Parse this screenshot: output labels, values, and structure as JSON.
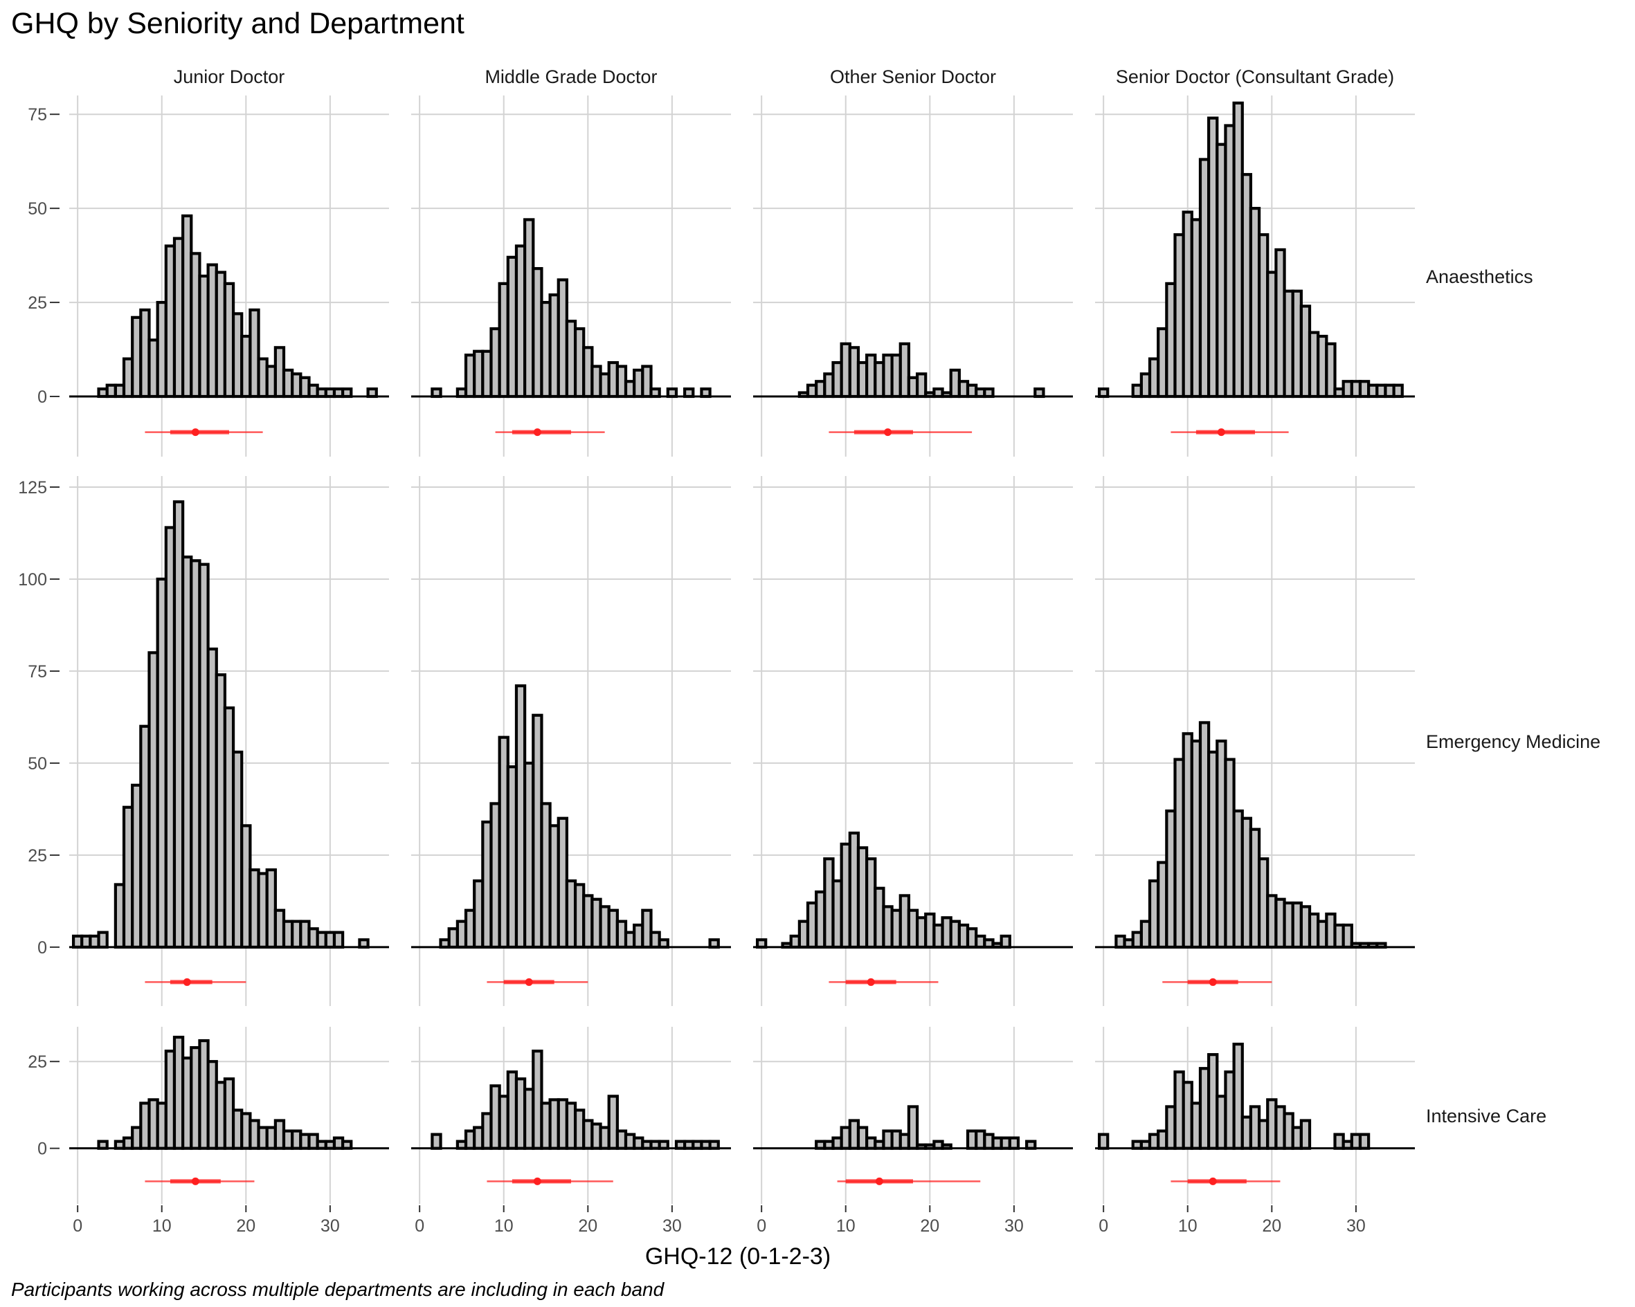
{
  "chart_data": {
    "type": "bar",
    "title": "GHQ by Seniority and Department",
    "xlabel": "GHQ-12 (0-1-2-3)",
    "caption": "Participants working across multiple departments are including in each band",
    "columns": [
      "Junior Doctor",
      "Middle Grade Doctor",
      "Other Senior Doctor",
      "Senior Doctor (Consultant Grade)"
    ],
    "rows": [
      "Anaesthetics",
      "Emergency Medicine",
      "Intensive Care"
    ],
    "x_ticks": [
      0,
      10,
      20,
      30
    ],
    "xlim": [
      -1,
      37
    ],
    "bin_width": 1,
    "row_ylim": [
      [
        -16,
        80
      ],
      [
        -16,
        128
      ],
      [
        -16,
        35
      ]
    ],
    "row_yticks": [
      [
        0,
        25,
        50,
        75
      ],
      [
        0,
        25,
        50,
        75,
        100,
        125
      ],
      [
        0,
        25
      ]
    ],
    "x_tick_labels": [
      "0",
      "10",
      "20",
      "30"
    ],
    "row_ytick_labels": [
      [
        "0",
        "25",
        "50",
        "75"
      ],
      [
        "0",
        "25",
        "50",
        "75",
        "100",
        "125"
      ],
      [
        "0",
        "25"
      ]
    ],
    "grid": true,
    "bar_fill": "#bfbfbf",
    "bar_outline": "#000000",
    "summary_color": "#ff2020",
    "panels": [
      [
        {
          "counts": [
            0,
            0,
            0,
            2,
            3,
            3,
            10,
            21,
            23,
            15,
            25,
            40,
            42,
            48,
            38,
            32,
            35,
            33,
            30,
            22,
            16,
            23,
            10,
            8,
            13,
            7,
            6,
            5,
            3,
            2,
            2,
            2,
            2,
            0,
            0,
            2
          ],
          "summary": {
            "median": 14,
            "q1": 11,
            "q3": 18,
            "lo": 8,
            "hi": 22
          }
        },
        {
          "counts": [
            0,
            0,
            2,
            0,
            0,
            2,
            11,
            12,
            12,
            18,
            30,
            37,
            40,
            47,
            34,
            25,
            27,
            31,
            20,
            18,
            13,
            8,
            6,
            9,
            8,
            4,
            7,
            8,
            2,
            0,
            2,
            0,
            2,
            0,
            2,
            0
          ],
          "summary": {
            "median": 14,
            "q1": 11,
            "q3": 18,
            "lo": 9,
            "hi": 22
          }
        },
        {
          "counts": [
            0,
            0,
            0,
            0,
            0,
            1,
            3,
            4,
            6,
            9,
            14,
            13,
            9,
            11,
            9,
            11,
            11,
            14,
            5,
            6,
            1,
            2,
            1,
            7,
            4,
            3,
            2,
            2,
            0,
            0,
            0,
            0,
            0,
            2,
            0,
            0
          ],
          "summary": {
            "median": 15,
            "q1": 11,
            "q3": 18,
            "lo": 8,
            "hi": 25
          }
        },
        {
          "counts": [
            2,
            0,
            0,
            0,
            3,
            6,
            10,
            18,
            30,
            43,
            49,
            47,
            63,
            74,
            67,
            72,
            78,
            59,
            50,
            43,
            33,
            39,
            28,
            28,
            24,
            17,
            16,
            14,
            2,
            4,
            4,
            4,
            3,
            3,
            3,
            3
          ],
          "summary": {
            "median": 14,
            "q1": 11,
            "q3": 18,
            "lo": 8,
            "hi": 22
          }
        }
      ],
      [
        {
          "counts": [
            3,
            3,
            3,
            4,
            0,
            17,
            38,
            44,
            60,
            80,
            100,
            114,
            121,
            106,
            105,
            104,
            81,
            74,
            65,
            53,
            33,
            21,
            20,
            21,
            10,
            7,
            7,
            7,
            5,
            4,
            4,
            4,
            0,
            0,
            2,
            0
          ],
          "summary": {
            "median": 13,
            "q1": 11,
            "q3": 16,
            "lo": 8,
            "hi": 20
          }
        },
        {
          "counts": [
            0,
            0,
            0,
            2,
            5,
            7,
            10,
            18,
            34,
            39,
            57,
            49,
            71,
            50,
            63,
            39,
            33,
            35,
            18,
            17,
            14,
            13,
            11,
            10,
            7,
            4,
            6,
            10,
            4,
            2,
            0,
            0,
            0,
            0,
            0,
            2
          ],
          "summary": {
            "median": 13,
            "q1": 10,
            "q3": 16,
            "lo": 8,
            "hi": 20
          }
        },
        {
          "counts": [
            2,
            0,
            0,
            1,
            3,
            7,
            12,
            15,
            24,
            18,
            28,
            31,
            27,
            24,
            16,
            11,
            10,
            14,
            10,
            8,
            9,
            6,
            8,
            7,
            6,
            5,
            3,
            2,
            1,
            3,
            0,
            0,
            0,
            0,
            0,
            0
          ],
          "summary": {
            "median": 13,
            "q1": 10,
            "q3": 16,
            "lo": 8,
            "hi": 21
          }
        },
        {
          "counts": [
            0,
            0,
            3,
            2,
            4,
            7,
            18,
            23,
            37,
            51,
            58,
            56,
            61,
            53,
            56,
            51,
            37,
            35,
            32,
            24,
            14,
            13,
            12,
            12,
            11,
            9,
            7,
            9,
            6,
            6,
            1,
            1,
            1,
            1,
            0,
            0
          ],
          "summary": {
            "median": 13,
            "q1": 10,
            "q3": 16,
            "lo": 7,
            "hi": 20
          }
        }
      ],
      [
        {
          "counts": [
            0,
            0,
            0,
            2,
            0,
            2,
            3,
            6,
            13,
            14,
            13,
            28,
            32,
            26,
            29,
            31,
            25,
            19,
            20,
            11,
            10,
            8,
            6,
            6,
            8,
            5,
            5,
            4,
            4,
            2,
            2,
            3,
            2,
            0,
            0,
            0
          ],
          "summary": {
            "median": 14,
            "q1": 11,
            "q3": 17,
            "lo": 8,
            "hi": 21
          }
        },
        {
          "counts": [
            0,
            0,
            4,
            0,
            0,
            2,
            5,
            6,
            10,
            18,
            15,
            22,
            20,
            17,
            28,
            13,
            14,
            14,
            13,
            11,
            8,
            7,
            6,
            15,
            5,
            4,
            3,
            2,
            2,
            2,
            0,
            2,
            2,
            2,
            2,
            2
          ],
          "summary": {
            "median": 14,
            "q1": 11,
            "q3": 18,
            "lo": 8,
            "hi": 23
          }
        },
        {
          "counts": [
            0,
            0,
            0,
            0,
            0,
            0,
            0,
            2,
            2,
            3,
            6,
            8,
            6,
            3,
            2,
            5,
            5,
            4,
            12,
            1,
            1,
            2,
            1,
            0,
            0,
            5,
            5,
            4,
            3,
            3,
            3,
            0,
            2,
            0,
            0,
            0
          ],
          "summary": {
            "median": 14,
            "q1": 10,
            "q3": 18,
            "lo": 9,
            "hi": 26
          }
        },
        {
          "counts": [
            4,
            0,
            0,
            0,
            2,
            2,
            4,
            5,
            12,
            22,
            19,
            13,
            23,
            27,
            15,
            22,
            30,
            9,
            12,
            8,
            14,
            12,
            10,
            6,
            8,
            0,
            0,
            0,
            4,
            2,
            4,
            4,
            0,
            0,
            0,
            0
          ],
          "summary": {
            "median": 13,
            "q1": 10,
            "q3": 17,
            "lo": 8,
            "hi": 21
          }
        }
      ]
    ]
  }
}
